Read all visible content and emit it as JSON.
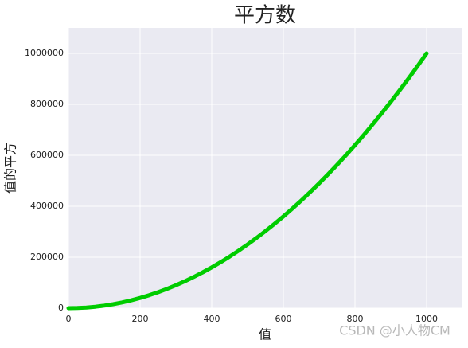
{
  "chart_data": {
    "type": "line",
    "title": "平方数",
    "x_label": "值",
    "y_label": "值的平方",
    "watermark": "CSDN @小人物CM",
    "x": [
      0,
      25,
      50,
      75,
      100,
      125,
      150,
      175,
      200,
      225,
      250,
      275,
      300,
      325,
      350,
      375,
      400,
      425,
      450,
      475,
      500,
      525,
      550,
      575,
      600,
      625,
      650,
      675,
      700,
      725,
      750,
      775,
      800,
      825,
      850,
      875,
      900,
      925,
      950,
      975,
      1000
    ],
    "series": [
      {
        "color": "#00cc00",
        "values": [
          0,
          625,
          2500,
          5625,
          10000,
          15625,
          22500,
          30625,
          40000,
          50625,
          62500,
          75625,
          90000,
          105625,
          122500,
          140625,
          160000,
          180625,
          202500,
          225625,
          250000,
          275625,
          302500,
          330625,
          360000,
          390625,
          422500,
          455625,
          490000,
          525625,
          562500,
          600625,
          640000,
          680625,
          722500,
          765625,
          810000,
          855625,
          902500,
          950625,
          1000000
        ]
      }
    ],
    "xlim": [
      0,
      1100
    ],
    "ylim": [
      0,
      1100000
    ],
    "xticks": [
      0,
      200,
      400,
      600,
      800,
      1000
    ],
    "yticks": [
      0,
      200000,
      400000,
      600000,
      800000,
      1000000
    ],
    "grid": true
  }
}
